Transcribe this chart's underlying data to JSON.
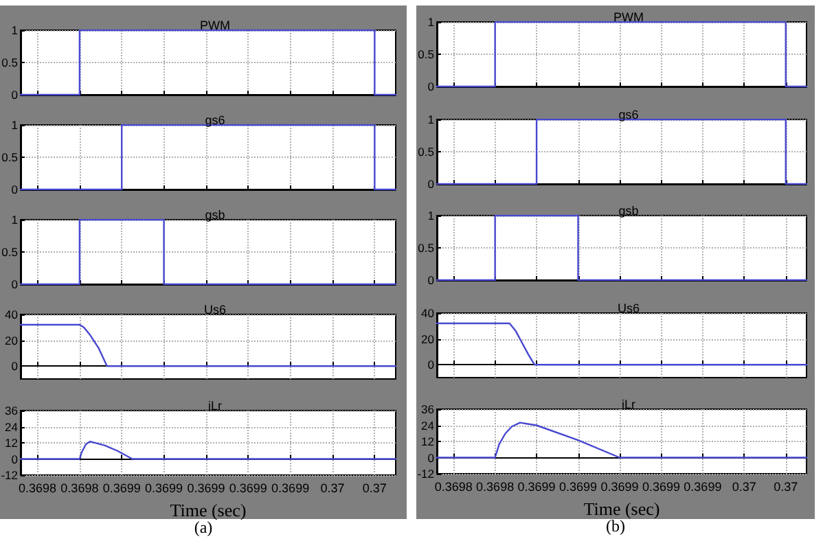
{
  "chart_data": [
    {
      "type": "step",
      "title": "PWM",
      "x": [
        0.369812,
        0.36984,
        0.36998,
        0.36999
      ],
      "values": [
        0,
        1,
        0,
        0
      ],
      "color": "#4848d0",
      "xlim": [
        0.369812,
        0.36999
      ],
      "xticks": [
        {
          "value": 0.36982,
          "label": null
        },
        {
          "value": 0.36984,
          "label": null
        },
        {
          "value": 0.36986,
          "label": null
        },
        {
          "value": 0.36988,
          "label": null
        },
        {
          "value": 0.3699,
          "label": null
        },
        {
          "value": 0.36992,
          "label": null
        },
        {
          "value": 0.36994,
          "label": null
        },
        {
          "value": 0.36996,
          "label": null
        },
        {
          "value": 0.36998,
          "label": null
        }
      ],
      "ylim": [
        0,
        1
      ],
      "yticks": [
        0,
        0.5,
        1
      ],
      "grid": true,
      "tick_labels": "y"
    },
    {
      "type": "step",
      "title": "gs6",
      "x": [
        0.369812,
        0.36986,
        0.36998,
        0.36999
      ],
      "values": [
        0,
        1,
        0,
        0
      ],
      "color": "#4848d0",
      "xlim": [
        0.369812,
        0.36999
      ],
      "xticks": [
        {
          "value": 0.36982,
          "label": null
        },
        {
          "value": 0.36984,
          "label": null
        },
        {
          "value": 0.36986,
          "label": null
        },
        {
          "value": 0.36988,
          "label": null
        },
        {
          "value": 0.3699,
          "label": null
        },
        {
          "value": 0.36992,
          "label": null
        },
        {
          "value": 0.36994,
          "label": null
        },
        {
          "value": 0.36996,
          "label": null
        },
        {
          "value": 0.36998,
          "label": null
        }
      ],
      "ylim": [
        0,
        1
      ],
      "yticks": [
        0,
        0.5,
        1
      ],
      "grid": true,
      "tick_labels": "y"
    },
    {
      "type": "step",
      "title": "gsb",
      "x": [
        0.369812,
        0.36984,
        0.36988,
        0.36999
      ],
      "values": [
        0,
        1,
        0,
        0
      ],
      "color": "#4848d0",
      "xlim": [
        0.369812,
        0.36999
      ],
      "xticks": [
        {
          "value": 0.36982,
          "label": null
        },
        {
          "value": 0.36984,
          "label": null
        },
        {
          "value": 0.36986,
          "label": null
        },
        {
          "value": 0.36988,
          "label": null
        },
        {
          "value": 0.3699,
          "label": null
        },
        {
          "value": 0.36992,
          "label": null
        },
        {
          "value": 0.36994,
          "label": null
        },
        {
          "value": 0.36996,
          "label": null
        },
        {
          "value": 0.36998,
          "label": null
        }
      ],
      "ylim": [
        0,
        1
      ],
      "yticks": [
        0,
        0.5,
        1
      ],
      "grid": true,
      "tick_labels": "y"
    },
    {
      "type": "line",
      "title": "Us6",
      "x": [
        0.369812,
        0.36984,
        0.369842,
        0.369845,
        0.369849,
        0.369853,
        0.36999
      ],
      "values": [
        32,
        32,
        30,
        24,
        14,
        0,
        0
      ],
      "color": "#4848d0",
      "xlim": [
        0.369812,
        0.36999
      ],
      "xticks": [
        {
          "value": 0.36982,
          "label": null
        },
        {
          "value": 0.36984,
          "label": null
        },
        {
          "value": 0.36986,
          "label": null
        },
        {
          "value": 0.36988,
          "label": null
        },
        {
          "value": 0.3699,
          "label": null
        },
        {
          "value": 0.36992,
          "label": null
        },
        {
          "value": 0.36994,
          "label": null
        },
        {
          "value": 0.36996,
          "label": null
        },
        {
          "value": 0.36998,
          "label": null
        }
      ],
      "ylim": [
        -10,
        40
      ],
      "yticks": [
        0,
        20,
        40
      ],
      "grid": true,
      "tick_labels": "y"
    },
    {
      "type": "line",
      "title": "iLr",
      "xlabel": "Time (sec)",
      "annotations": [
        "(a)"
      ],
      "x": [
        0.369812,
        0.36984,
        0.369841,
        0.369843,
        0.369845,
        0.369852,
        0.369858,
        0.369865,
        0.36999
      ],
      "values": [
        0,
        0,
        5,
        11,
        13,
        10,
        6,
        0,
        0
      ],
      "color": "#4848d0",
      "xlim": [
        0.369812,
        0.36999
      ],
      "xticks": [
        {
          "value": 0.36982,
          "label": "0.3698"
        },
        {
          "value": 0.36984,
          "label": "0.3698"
        },
        {
          "value": 0.36986,
          "label": "0.3699"
        },
        {
          "value": 0.36988,
          "label": "0.3699"
        },
        {
          "value": 0.3699,
          "label": "0.3699"
        },
        {
          "value": 0.36992,
          "label": "0.3699"
        },
        {
          "value": 0.36994,
          "label": "0.3699"
        },
        {
          "value": 0.36996,
          "label": "0.37"
        },
        {
          "value": 0.36998,
          "label": "0.37"
        }
      ],
      "ylim": [
        -12,
        36
      ],
      "yticks": [
        -12,
        0,
        12,
        24,
        36
      ],
      "grid": true
    },
    {
      "type": "step",
      "title": "PWM",
      "x": [
        0.369812,
        0.36984,
        0.36998,
        0.36999
      ],
      "values": [
        0,
        1,
        0,
        0
      ],
      "color": "#4848d0",
      "xlim": [
        0.369812,
        0.36999
      ],
      "xticks": [
        {
          "value": 0.36982,
          "label": null
        },
        {
          "value": 0.36984,
          "label": null
        },
        {
          "value": 0.36986,
          "label": null
        },
        {
          "value": 0.36988,
          "label": null
        },
        {
          "value": 0.3699,
          "label": null
        },
        {
          "value": 0.36992,
          "label": null
        },
        {
          "value": 0.36994,
          "label": null
        },
        {
          "value": 0.36996,
          "label": null
        },
        {
          "value": 0.36998,
          "label": null
        }
      ],
      "ylim": [
        0,
        1
      ],
      "yticks": [
        0,
        0.5,
        1
      ],
      "grid": true,
      "tick_labels": "y"
    },
    {
      "type": "step",
      "title": "gs6",
      "x": [
        0.369812,
        0.36986,
        0.36998,
        0.36999
      ],
      "values": [
        0,
        1,
        0,
        0
      ],
      "color": "#4848d0",
      "xlim": [
        0.369812,
        0.36999
      ],
      "xticks": [
        {
          "value": 0.36982,
          "label": null
        },
        {
          "value": 0.36984,
          "label": null
        },
        {
          "value": 0.36986,
          "label": null
        },
        {
          "value": 0.36988,
          "label": null
        },
        {
          "value": 0.3699,
          "label": null
        },
        {
          "value": 0.36992,
          "label": null
        },
        {
          "value": 0.36994,
          "label": null
        },
        {
          "value": 0.36996,
          "label": null
        },
        {
          "value": 0.36998,
          "label": null
        }
      ],
      "ylim": [
        0,
        1
      ],
      "yticks": [
        0,
        0.5,
        1
      ],
      "grid": true,
      "tick_labels": "y"
    },
    {
      "type": "step",
      "title": "gsb",
      "x": [
        0.369812,
        0.36984,
        0.36988,
        0.36999
      ],
      "values": [
        0,
        1,
        0,
        0
      ],
      "color": "#4848d0",
      "xlim": [
        0.369812,
        0.36999
      ],
      "xticks": [
        {
          "value": 0.36982,
          "label": null
        },
        {
          "value": 0.36984,
          "label": null
        },
        {
          "value": 0.36986,
          "label": null
        },
        {
          "value": 0.36988,
          "label": null
        },
        {
          "value": 0.3699,
          "label": null
        },
        {
          "value": 0.36992,
          "label": null
        },
        {
          "value": 0.36994,
          "label": null
        },
        {
          "value": 0.36996,
          "label": null
        },
        {
          "value": 0.36998,
          "label": null
        }
      ],
      "ylim": [
        0,
        1
      ],
      "yticks": [
        0,
        0.5,
        1
      ],
      "grid": true,
      "tick_labels": "y"
    },
    {
      "type": "line",
      "title": "Us6",
      "x": [
        0.369812,
        0.369847,
        0.36985,
        0.369853,
        0.369856,
        0.369859,
        0.36999
      ],
      "values": [
        32,
        32,
        26,
        17,
        8,
        0,
        0
      ],
      "color": "#4848d0",
      "xlim": [
        0.369812,
        0.36999
      ],
      "xticks": [
        {
          "value": 0.36982,
          "label": null
        },
        {
          "value": 0.36984,
          "label": null
        },
        {
          "value": 0.36986,
          "label": null
        },
        {
          "value": 0.36988,
          "label": null
        },
        {
          "value": 0.3699,
          "label": null
        },
        {
          "value": 0.36992,
          "label": null
        },
        {
          "value": 0.36994,
          "label": null
        },
        {
          "value": 0.36996,
          "label": null
        },
        {
          "value": 0.36998,
          "label": null
        }
      ],
      "ylim": [
        -10,
        40
      ],
      "yticks": [
        0,
        20,
        40
      ],
      "grid": true,
      "tick_labels": "y"
    },
    {
      "type": "line",
      "title": "iLr",
      "xlabel": "Time (sec)",
      "annotations": [
        "(b)"
      ],
      "x": [
        0.369812,
        0.36984,
        0.369842,
        0.369845,
        0.369848,
        0.369852,
        0.36986,
        0.36988,
        0.3699,
        0.36999
      ],
      "values": [
        0,
        0,
        10,
        18,
        23,
        26,
        24,
        13,
        0,
        0
      ],
      "color": "#4848d0",
      "xlim": [
        0.369812,
        0.36999
      ],
      "xticks": [
        {
          "value": 0.36982,
          "label": "0.3698"
        },
        {
          "value": 0.36984,
          "label": "0.3698"
        },
        {
          "value": 0.36986,
          "label": "0.3699"
        },
        {
          "value": 0.36988,
          "label": "0.3699"
        },
        {
          "value": 0.3699,
          "label": "0.3699"
        },
        {
          "value": 0.36992,
          "label": "0.3699"
        },
        {
          "value": 0.36994,
          "label": "0.3699"
        },
        {
          "value": 0.36996,
          "label": "0.37"
        },
        {
          "value": 0.36998,
          "label": "0.37"
        }
      ],
      "ylim": [
        -12,
        36
      ],
      "yticks": [
        -12,
        0,
        12,
        24,
        36
      ],
      "grid": true
    }
  ]
}
